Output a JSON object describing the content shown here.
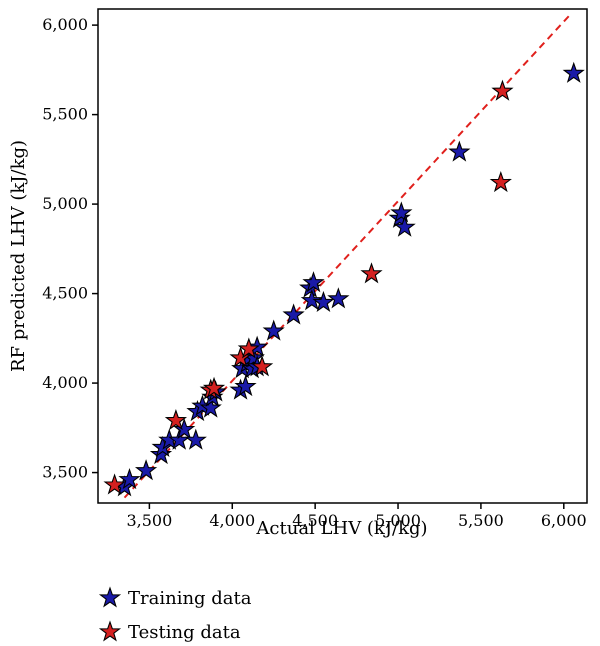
{
  "chart_data": {
    "type": "scatter",
    "xlabel": "Actual LHV  (kJ/kg)",
    "ylabel": "RF predicted LHV  (kJ/kg)",
    "xlim": [
      3190,
      6140
    ],
    "ylim": [
      3330,
      6090
    ],
    "xticks": [
      3500,
      4000,
      4500,
      5000,
      5500,
      6000
    ],
    "yticks": [
      3500,
      4000,
      4500,
      5000,
      5500,
      6000
    ],
    "xtick_labels": [
      "3,500",
      "4,000",
      "4,500",
      "5,000",
      "5,500",
      "6,000"
    ],
    "ytick_labels": [
      "3,500",
      "4,000",
      "4,500",
      "5,000",
      "5,500",
      "6,000"
    ],
    "grid": false,
    "legend_position": "bottom-left",
    "reference_line": {
      "style": "dashed",
      "color": "#e0201c",
      "from": [
        3350,
        3360
      ],
      "to": [
        6040,
        6060
      ]
    },
    "series": [
      {
        "name": "Training data",
        "marker": "star",
        "color": "#1a1aa8",
        "points": [
          [
            3350,
            3420
          ],
          [
            3380,
            3460
          ],
          [
            3480,
            3510
          ],
          [
            3570,
            3600
          ],
          [
            3580,
            3640
          ],
          [
            3620,
            3680
          ],
          [
            3680,
            3680
          ],
          [
            3710,
            3740
          ],
          [
            3780,
            3680
          ],
          [
            3790,
            3840
          ],
          [
            3820,
            3870
          ],
          [
            3870,
            3860
          ],
          [
            3880,
            3920
          ],
          [
            3900,
            3950
          ],
          [
            4050,
            3960
          ],
          [
            4060,
            4080
          ],
          [
            4080,
            3980
          ],
          [
            4090,
            4110
          ],
          [
            4100,
            4140
          ],
          [
            4120,
            4080
          ],
          [
            4130,
            4140
          ],
          [
            4150,
            4200
          ],
          [
            4150,
            4090
          ],
          [
            4250,
            4290
          ],
          [
            4370,
            4380
          ],
          [
            4470,
            4530
          ],
          [
            4480,
            4460
          ],
          [
            4490,
            4560
          ],
          [
            4550,
            4450
          ],
          [
            4640,
            4470
          ],
          [
            5010,
            4920
          ],
          [
            5020,
            4950
          ],
          [
            5040,
            4870
          ],
          [
            5370,
            5290
          ],
          [
            6060,
            5730
          ]
        ]
      },
      {
        "name": "Testing data",
        "marker": "star",
        "color": "#d42020",
        "points": [
          [
            3290,
            3430
          ],
          [
            3660,
            3790
          ],
          [
            3870,
            3960
          ],
          [
            3890,
            3970
          ],
          [
            4050,
            4140
          ],
          [
            4100,
            4190
          ],
          [
            4180,
            4090
          ],
          [
            4840,
            4610
          ],
          [
            5620,
            5120
          ],
          [
            5630,
            5630
          ]
        ]
      }
    ]
  }
}
